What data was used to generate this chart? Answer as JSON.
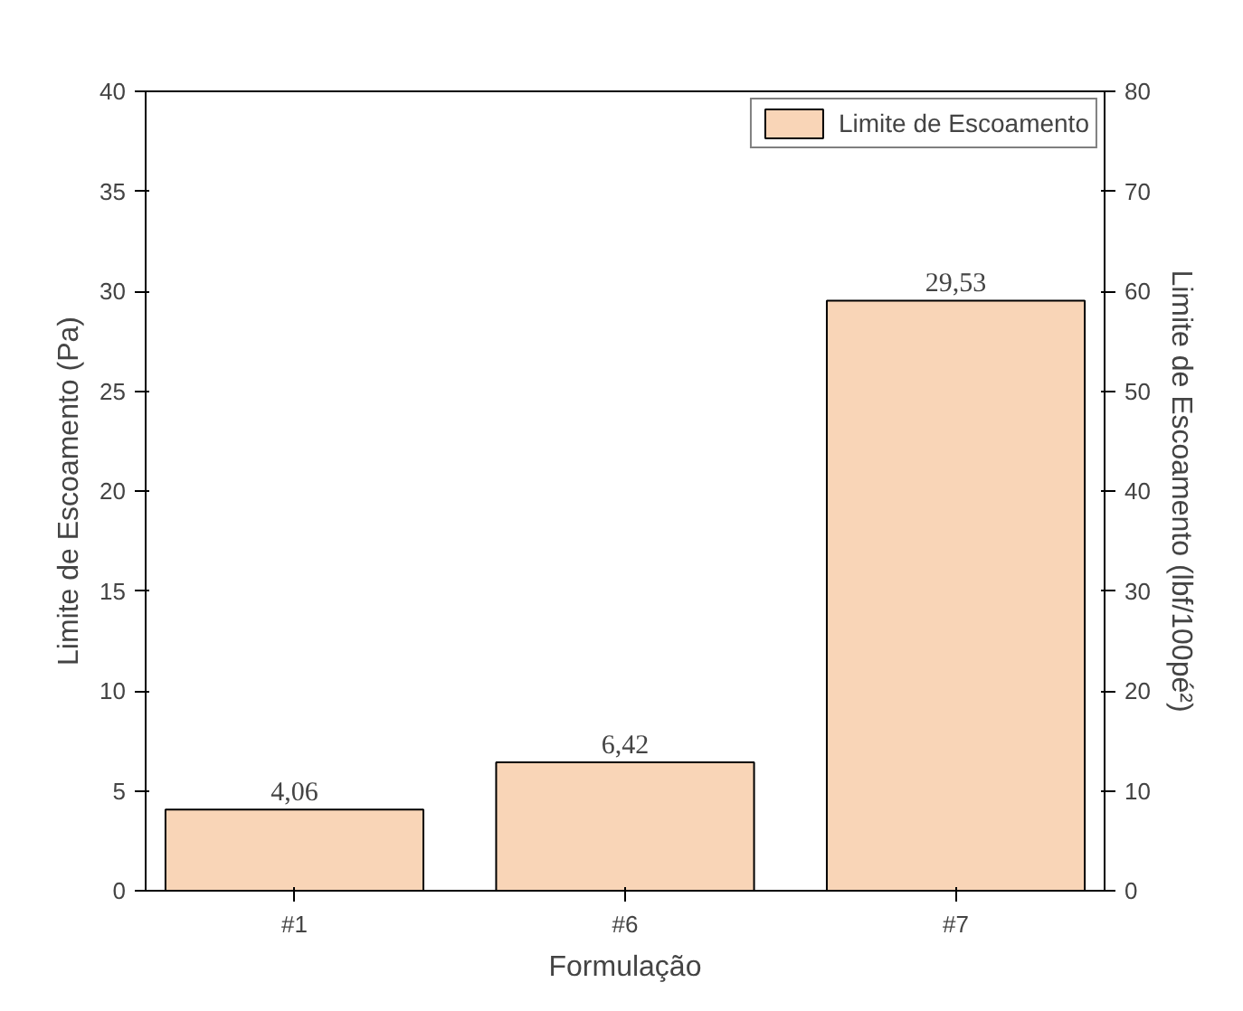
{
  "chart_data": {
    "type": "bar",
    "xlabel": "Formulação",
    "ylabel": "Limite de Escoamento (Pa)",
    "y2label": "Limite de Escoamento (lbf/100pé²)",
    "categories": [
      "#1",
      "#6",
      "#7"
    ],
    "series": [
      {
        "name": "Limite de Escoamento",
        "color": "#f9d5b7",
        "values": [
          4.06,
          6.42,
          29.53
        ],
        "value_labels": [
          "4,06",
          "6,42",
          "29,53"
        ]
      }
    ],
    "ylim": [
      0,
      40
    ],
    "yticks": [
      0,
      5,
      10,
      15,
      20,
      25,
      30,
      35,
      40
    ],
    "y2lim": [
      0,
      80
    ],
    "y2ticks": [
      0,
      10,
      20,
      30,
      40,
      50,
      60,
      70,
      80
    ],
    "grid": false,
    "legend": "top right"
  }
}
